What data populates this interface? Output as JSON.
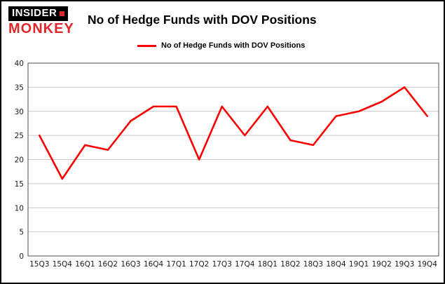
{
  "branding": {
    "line1": "INSIDER",
    "line2": "MONKEY",
    "accent_color": "#e3262c"
  },
  "title": "No of Hedge Funds with DOV Positions",
  "legend": {
    "label": "No of Hedge Funds with DOV Positions",
    "color": "#ff0000",
    "position": "top"
  },
  "chart_data": {
    "type": "line",
    "title": "No of Hedge Funds with DOV Positions",
    "xlabel": "",
    "ylabel": "",
    "categories": [
      "15Q3",
      "15Q4",
      "16Q1",
      "16Q2",
      "16Q3",
      "16Q4",
      "17Q1",
      "17Q2",
      "17Q3",
      "17Q4",
      "18Q1",
      "18Q2",
      "18Q3",
      "18Q4",
      "19Q1",
      "19Q2",
      "19Q3",
      "19Q4"
    ],
    "series": [
      {
        "name": "No of Hedge Funds with DOV Positions",
        "color": "#ff0000",
        "values": [
          25,
          16,
          23,
          22,
          28,
          31,
          31,
          20,
          31,
          25,
          31,
          24,
          23,
          29,
          30,
          32,
          35,
          29
        ]
      }
    ],
    "ylim": [
      0,
      40
    ],
    "ytick_step": 5,
    "grid": true,
    "gridline_color": "#c9c9c9",
    "legend_position": "top"
  }
}
